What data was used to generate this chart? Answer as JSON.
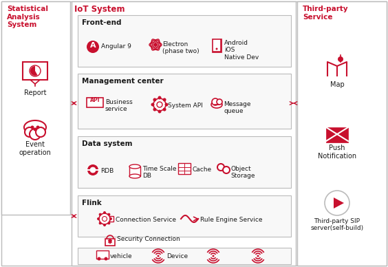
{
  "red": "#c8102e",
  "gray_border": "#bbbbbb",
  "bg_white": "#ffffff",
  "bg_section": "#f8f8f8",
  "text_dark": "#1a1a1a",
  "title_iot": "IoT System",
  "title_stat": "Statistical\nAnalysis\nSystem",
  "title_third": "Third-party\nService"
}
